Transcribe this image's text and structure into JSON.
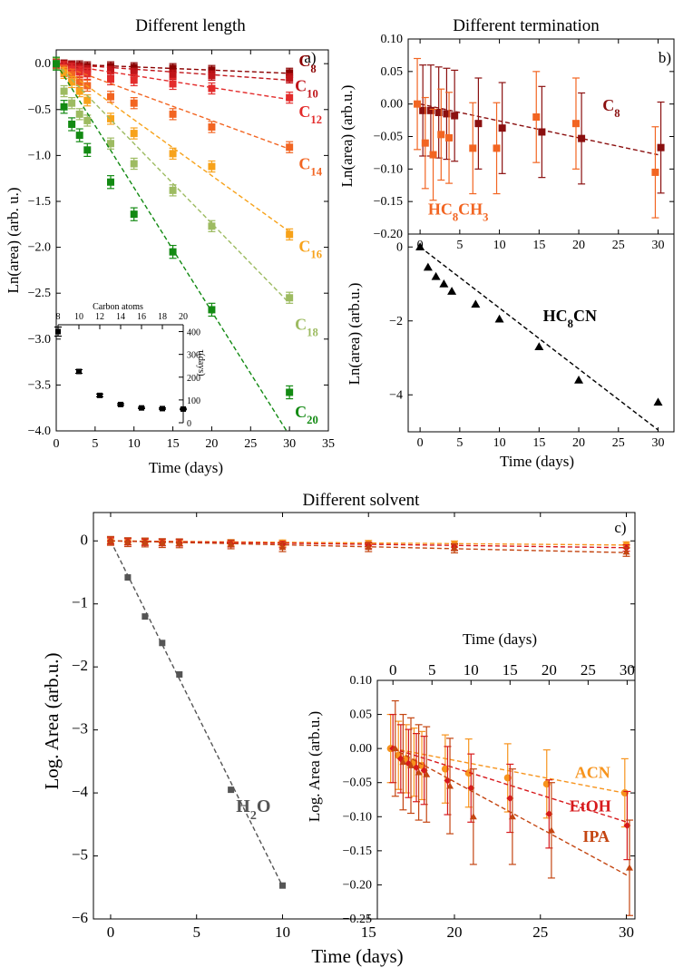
{
  "figure": {
    "width": 764,
    "height": 1077
  },
  "chart_data": [
    {
      "id": "a",
      "type": "scatter",
      "title": "Different length",
      "panel_label": "a)",
      "xlabel": "Time (days)",
      "ylabel": "Ln(area) (arb. u.)",
      "xlim": [
        0,
        35
      ],
      "ylim": [
        -4.0,
        0.15
      ],
      "xticks": [
        0,
        5,
        10,
        15,
        20,
        25,
        30,
        35
      ],
      "yticks": [
        0.0,
        -0.5,
        -1.0,
        -1.5,
        -2.0,
        -2.5,
        -3.0,
        -3.5,
        -4.0
      ],
      "decimals": 1,
      "series": [
        {
          "name": "C8",
          "sub": "8",
          "color": "#8b0000",
          "slope": -0.0035,
          "x": [
            0,
            1,
            2,
            3,
            4,
            7,
            10,
            15,
            20,
            30
          ],
          "y": [
            0,
            -0.01,
            -0.02,
            -0.02,
            -0.03,
            -0.03,
            -0.04,
            -0.05,
            -0.07,
            -0.1
          ],
          "err": 0.05,
          "label": {
            "base": "C",
            "sub": "8",
            "x": 31.2,
            "y": -0.03
          }
        },
        {
          "name": "C10",
          "sub": "10",
          "color": "#c0151a",
          "slope": -0.006,
          "x": [
            0,
            1,
            2,
            3,
            4,
            7,
            10,
            15,
            20,
            30
          ],
          "y": [
            0,
            -0.02,
            -0.03,
            -0.05,
            -0.07,
            -0.08,
            -0.1,
            -0.12,
            -0.13,
            -0.16
          ],
          "err": 0.05,
          "label": {
            "base": "C",
            "sub": "10",
            "x": 30.7,
            "y": -0.3
          }
        },
        {
          "name": "C12",
          "sub": "12",
          "color": "#e32b2b",
          "slope": -0.013,
          "x": [
            0,
            1,
            2,
            3,
            4,
            7,
            10,
            15,
            20,
            30
          ],
          "y": [
            0,
            -0.04,
            -0.06,
            -0.09,
            -0.11,
            -0.17,
            -0.18,
            -0.22,
            -0.27,
            -0.37
          ],
          "err": 0.06,
          "label": {
            "base": "C",
            "sub": "12",
            "x": 31.2,
            "y": -0.58
          }
        },
        {
          "name": "C14",
          "sub": "14",
          "color": "#f26522",
          "slope": -0.031,
          "x": [
            0,
            1,
            2,
            3,
            4,
            7,
            10,
            15,
            20,
            30
          ],
          "y": [
            0,
            -0.08,
            -0.12,
            -0.2,
            -0.24,
            -0.36,
            -0.43,
            -0.55,
            -0.69,
            -0.91
          ],
          "err": 0.06,
          "label": {
            "base": "C",
            "sub": "14",
            "x": 31.2,
            "y": -1.15
          }
        },
        {
          "name": "C16",
          "sub": "16",
          "color": "#f7a21a",
          "slope": -0.061,
          "x": [
            0,
            1,
            2,
            3,
            4,
            7,
            10,
            15,
            20,
            30
          ],
          "y": [
            0,
            -0.1,
            -0.2,
            -0.3,
            -0.4,
            -0.6,
            -0.76,
            -0.98,
            -1.12,
            -1.86
          ],
          "err": 0.06,
          "label": {
            "base": "C",
            "sub": "16",
            "x": 31.2,
            "y": -2.05
          }
        },
        {
          "name": "C18",
          "sub": "18",
          "color": "#9dbb61",
          "slope": -0.087,
          "x": [
            0,
            1,
            2,
            3,
            4,
            7,
            10,
            15,
            20,
            30
          ],
          "y": [
            0,
            -0.3,
            -0.43,
            -0.55,
            -0.62,
            -0.87,
            -1.09,
            -1.38,
            -1.77,
            -2.55
          ],
          "err": 0.06,
          "label": {
            "base": "C",
            "sub": "18",
            "x": 30.7,
            "y": -2.9
          }
        },
        {
          "name": "C20",
          "sub": "20",
          "color": "#138a13",
          "slope": -0.135,
          "x": [
            0,
            1,
            2,
            3,
            4,
            7,
            10,
            15,
            20,
            30
          ],
          "y": [
            0,
            -0.47,
            -0.66,
            -0.78,
            -0.94,
            -1.29,
            -1.64,
            -2.05,
            -2.68,
            -3.58
          ],
          "err": 0.07,
          "label": {
            "base": "C",
            "sub": "20",
            "x": 30.7,
            "y": -3.85
          }
        }
      ],
      "inset": {
        "xlabel": "Carbon atoms",
        "ylabel": "τ(days)",
        "xlim": [
          8,
          20
        ],
        "ylim": [
          0,
          430
        ],
        "xticks": [
          8,
          10,
          12,
          14,
          16,
          18,
          20
        ],
        "yticks": [
          0,
          100,
          200,
          300,
          400
        ],
        "x": [
          8,
          10,
          12,
          14,
          16,
          18,
          20
        ],
        "y": [
          400,
          225,
          120,
          80,
          65,
          62,
          60
        ],
        "err": [
          20,
          8,
          6,
          4,
          3,
          3,
          3
        ]
      }
    },
    {
      "id": "b_top",
      "type": "scatter",
      "title": "Different termination",
      "panel_label": "b)",
      "xlabel": "",
      "ylabel": "Ln(area) (arb.u.)",
      "xlim": [
        -1.5,
        32
      ],
      "ylim": [
        -0.2,
        0.1
      ],
      "xticks": [
        0,
        5,
        10,
        15,
        20,
        25,
        30
      ],
      "yticks": [
        0.1,
        0.05,
        0.0,
        -0.05,
        -0.1,
        -0.15,
        -0.2
      ],
      "decimals": 2,
      "series": [
        {
          "name": "C8",
          "color": "#8b1010",
          "slope": -0.0026,
          "x": [
            0,
            1,
            2,
            3,
            4,
            7,
            10,
            15,
            20,
            30
          ],
          "y": [
            -0.01,
            -0.01,
            -0.013,
            -0.015,
            -0.018,
            -0.03,
            -0.037,
            -0.043,
            -0.053,
            -0.067
          ],
          "err": 0.07,
          "label": {
            "base": "C",
            "sub": "8",
            "x": 23,
            "y": -0.01
          }
        },
        {
          "name": "HC8CH3",
          "color": "#f26522",
          "slope": null,
          "x": [
            0,
            1,
            2,
            3,
            4,
            7,
            10,
            15,
            20,
            30
          ],
          "y": [
            0,
            -0.06,
            -0.078,
            -0.047,
            -0.052,
            -0.068,
            -0.068,
            -0.02,
            -0.03,
            -0.105
          ],
          "err": 0.07,
          "label": {
            "base": "HC",
            "sub": "8",
            "tail": "CH",
            "sub2": "3",
            "x": 1.0,
            "y": -0.17
          }
        }
      ]
    },
    {
      "id": "b_bottom",
      "type": "scatter",
      "title": "",
      "xlabel": "Time (days)",
      "ylabel": "Ln(area) (arb.u.)",
      "xlim": [
        -1.5,
        32
      ],
      "ylim": [
        -5,
        0.35
      ],
      "xticks": [
        0,
        5,
        10,
        15,
        20,
        25,
        30
      ],
      "yticks": [
        0,
        -2,
        -4
      ],
      "decimals": 0,
      "series": [
        {
          "name": "HC8CN",
          "color": "#000000",
          "slope": -0.165,
          "x": [
            0,
            1,
            2,
            3,
            4,
            7,
            10,
            15,
            20,
            30
          ],
          "y": [
            0,
            -0.55,
            -0.8,
            -1.0,
            -1.2,
            -1.55,
            -1.95,
            -2.7,
            -3.6,
            -4.2
          ],
          "err": 0,
          "label": {
            "base": "HC",
            "sub": "8",
            "tail": "CN",
            "x": 15.5,
            "y": -2.0
          }
        }
      ]
    },
    {
      "id": "c",
      "type": "scatter",
      "title": "Different solvent",
      "panel_label": "c)",
      "xlabel": "Time (days)",
      "ylabel": "Log. Area (arb.u.)",
      "xlim": [
        -1,
        30.5
      ],
      "ylim": [
        -6,
        0.45
      ],
      "xticks": [
        0,
        5,
        10,
        15,
        20,
        25,
        30
      ],
      "yticks": [
        0,
        -1,
        -2,
        -3,
        -4,
        -5,
        -6
      ],
      "decimals": 0,
      "series": [
        {
          "name": "H2O",
          "color": "#555555",
          "slope": -0.548,
          "x": [
            0,
            1,
            2,
            3,
            4,
            7,
            10
          ],
          "y": [
            0,
            -0.58,
            -1.2,
            -1.62,
            -2.12,
            -3.95,
            -5.47
          ],
          "err": 0,
          "label": {
            "base": "H",
            "sub": "2",
            "tail": "O",
            "x": 7.3,
            "y": -4.3
          }
        },
        {
          "name": "ACN",
          "color": "#f7941d",
          "slope": -0.0022,
          "x": [
            0,
            1,
            2,
            3,
            4,
            7,
            10,
            15,
            20,
            30
          ],
          "y": [
            0,
            -0.01,
            -0.015,
            -0.02,
            -0.025,
            -0.03,
            -0.036,
            -0.043,
            -0.052,
            -0.065
          ],
          "err": 0.05
        },
        {
          "name": "EtOH",
          "color": "#d7191c",
          "slope": -0.0036,
          "x": [
            0,
            1,
            2,
            3,
            4,
            7,
            10,
            15,
            20,
            30
          ],
          "y": [
            0,
            -0.015,
            -0.022,
            -0.028,
            -0.032,
            -0.047,
            -0.058,
            -0.073,
            -0.096,
            -0.113
          ],
          "err": 0.05
        },
        {
          "name": "IPA",
          "color": "#c44511",
          "slope": -0.0062,
          "x": [
            0,
            1,
            2,
            3,
            4,
            7,
            10,
            15,
            20,
            30
          ],
          "y": [
            0,
            -0.02,
            -0.025,
            -0.035,
            -0.038,
            -0.055,
            -0.1,
            -0.1,
            -0.12,
            -0.175
          ],
          "err": 0.07
        }
      ],
      "inset": {
        "xlabel": "Time (days)",
        "ylabel": "Log. Area (arb.u.)",
        "xlim": [
          -2,
          31
        ],
        "ylim": [
          -0.25,
          0.1
        ],
        "xticks": [
          0,
          5,
          10,
          15,
          20,
          25,
          30
        ],
        "yticks": [
          0.1,
          0.05,
          0.0,
          -0.05,
          -0.1,
          -0.15,
          -0.2,
          -0.25
        ],
        "labels": [
          {
            "text": "ACN",
            "color": "#f7941d",
            "x": 23.3,
            "y": -0.043
          },
          {
            "text": "EtOH",
            "color": "#d7191c",
            "x": 22.6,
            "y": -0.092
          },
          {
            "text": "IPA",
            "color": "#c44511",
            "x": 24.3,
            "y": -0.137
          }
        ]
      }
    }
  ]
}
